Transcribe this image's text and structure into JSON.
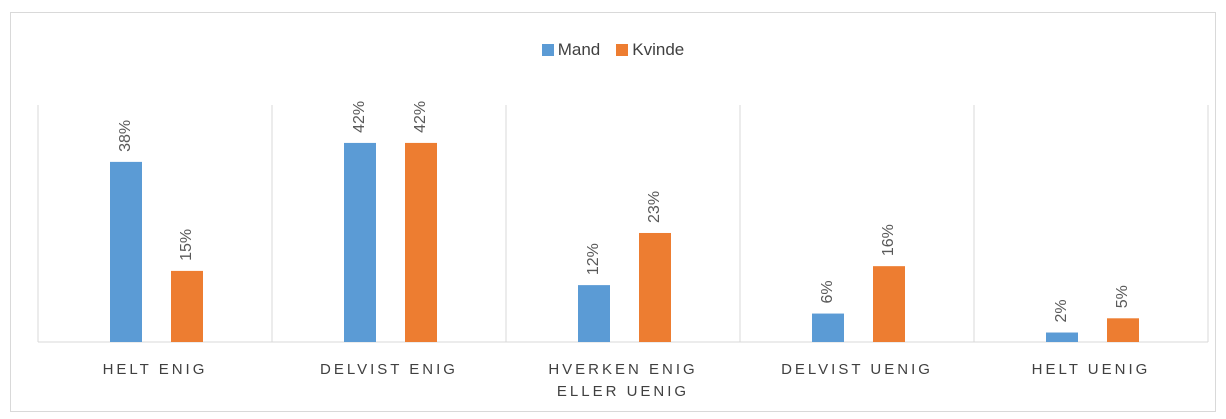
{
  "chart_data": {
    "type": "bar",
    "categories": [
      "HELT ENIG",
      "DELVIST ENIG",
      "HVERKEN ENIG ELLER UENIG",
      "DELVIST UENIG",
      "HELT UENIG"
    ],
    "series": [
      {
        "name": "Mand",
        "color": "#5b9bd5",
        "values": [
          38,
          42,
          12,
          6,
          2
        ],
        "value_labels": [
          "38%",
          "42%",
          "12%",
          "6%",
          "2%"
        ]
      },
      {
        "name": "Kvinde",
        "color": "#ed7d31",
        "values": [
          15,
          42,
          23,
          16,
          5
        ],
        "value_labels": [
          "15%",
          "42%",
          "23%",
          "16%",
          "5%"
        ]
      }
    ],
    "ylim": [
      0,
      50
    ],
    "legend": "top"
  }
}
